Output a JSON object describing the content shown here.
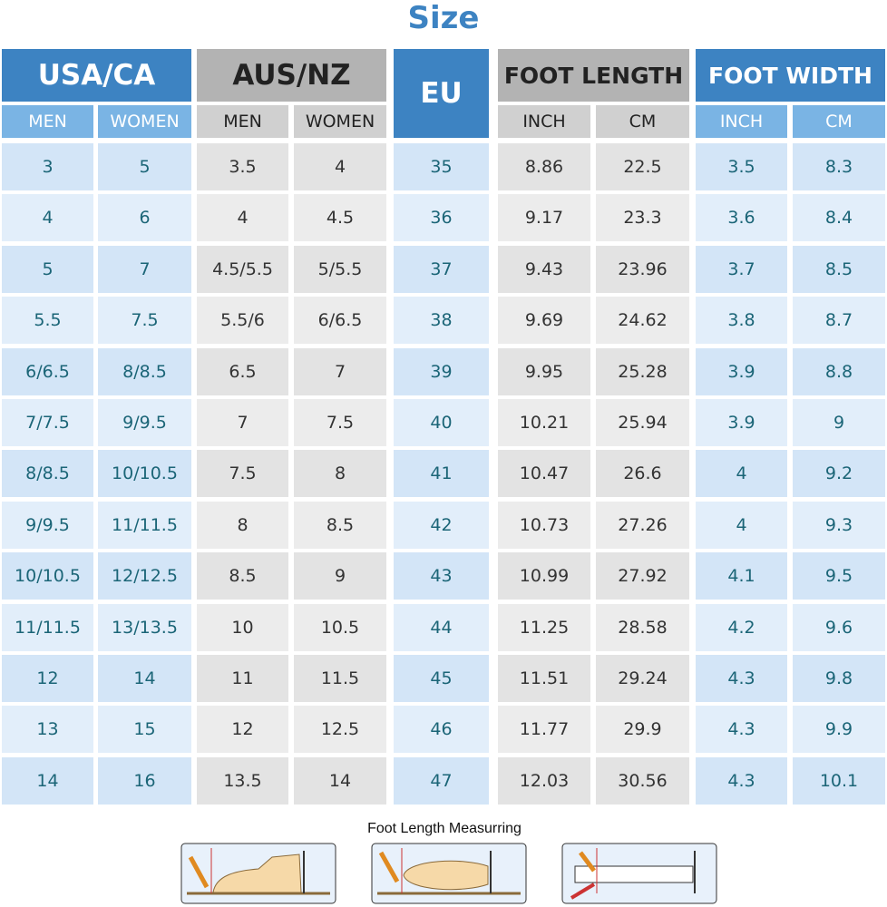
{
  "title": "Size",
  "header": {
    "groups": [
      "USA/CA",
      "AUS/NZ",
      "EU",
      "FOOT LENGTH",
      "FOOT WIDTH"
    ],
    "subheaders": [
      "MEN",
      "WOMEN",
      "MEN",
      "WOMEN",
      "INCH",
      "CM",
      "INCH",
      "CM"
    ]
  },
  "table": {
    "rows": [
      [
        "3",
        "5",
        "3.5",
        "4",
        "35",
        "8.86",
        "22.5",
        "3.5",
        "8.3"
      ],
      [
        "4",
        "6",
        "4",
        "4.5",
        "36",
        "9.17",
        "23.3",
        "3.6",
        "8.4"
      ],
      [
        "5",
        "7",
        "4.5/5.5",
        "5/5.5",
        "37",
        "9.43",
        "23.96",
        "3.7",
        "8.5"
      ],
      [
        "5.5",
        "7.5",
        "5.5/6",
        "6/6.5",
        "38",
        "9.69",
        "24.62",
        "3.8",
        "8.7"
      ],
      [
        "6/6.5",
        "8/8.5",
        "6.5",
        "7",
        "39",
        "9.95",
        "25.28",
        "3.9",
        "8.8"
      ],
      [
        "7/7.5",
        "9/9.5",
        "7",
        "7.5",
        "40",
        "10.21",
        "25.94",
        "3.9",
        "9"
      ],
      [
        "8/8.5",
        "10/10.5",
        "7.5",
        "8",
        "41",
        "10.47",
        "26.6",
        "4",
        "9.2"
      ],
      [
        "9/9.5",
        "11/11.5",
        "8",
        "8.5",
        "42",
        "10.73",
        "27.26",
        "4",
        "9.3"
      ],
      [
        "10/10.5",
        "12/12.5",
        "8.5",
        "9",
        "43",
        "10.99",
        "27.92",
        "4.1",
        "9.5"
      ],
      [
        "11/11.5",
        "13/13.5",
        "10",
        "10.5",
        "44",
        "11.25",
        "28.58",
        "4.2",
        "9.6"
      ],
      [
        "12",
        "14",
        "11",
        "11.5",
        "45",
        "11.51",
        "29.24",
        "4.3",
        "9.8"
      ],
      [
        "13",
        "15",
        "12",
        "12.5",
        "46",
        "11.77",
        "29.9",
        "4.3",
        "9.9"
      ],
      [
        "14",
        "16",
        "13.5",
        "14",
        "47",
        "12.03",
        "30.56",
        "4.3",
        "10.1"
      ]
    ]
  },
  "footer": {
    "caption": "Foot Length Measurring"
  }
}
